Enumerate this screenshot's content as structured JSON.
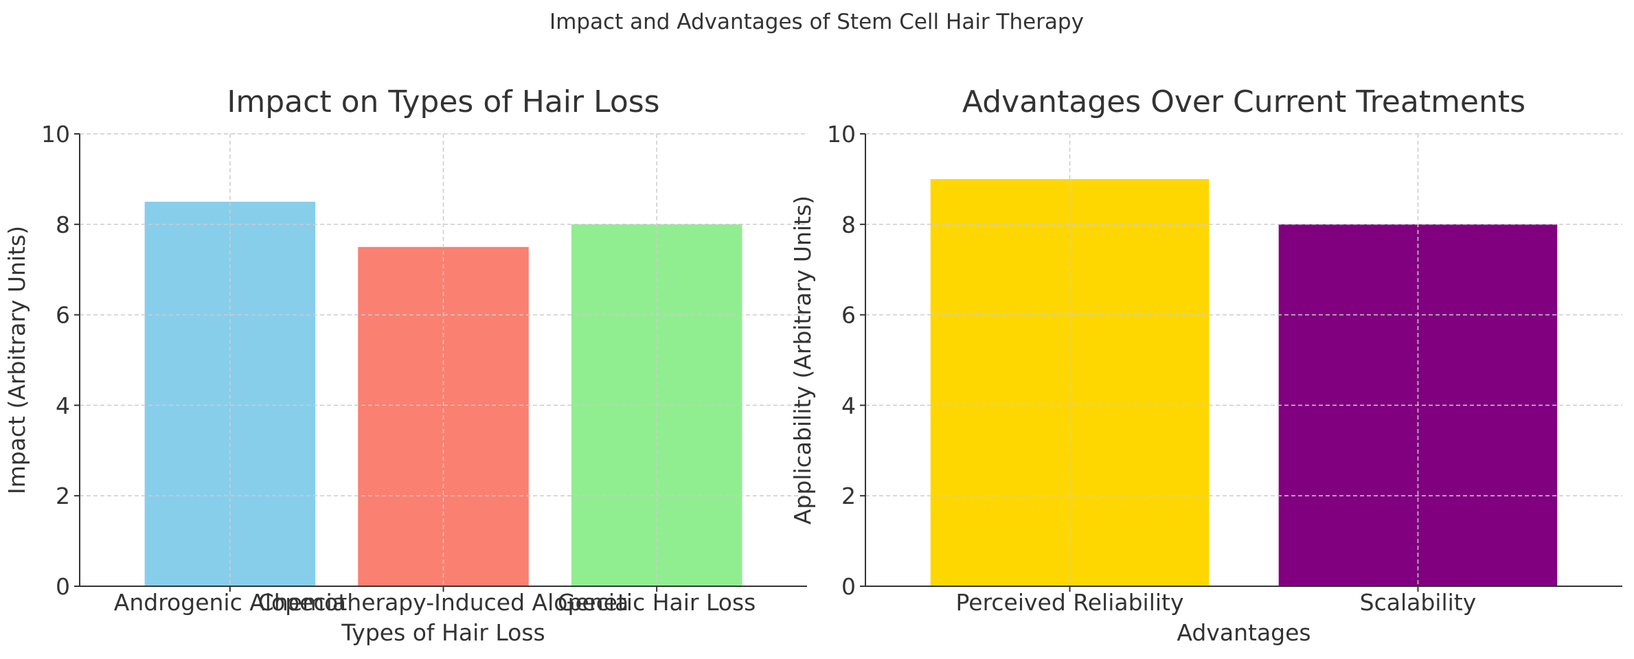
{
  "figure": {
    "suptitle": "Impact and Advantages of Stem Cell Hair Therapy"
  },
  "chart_data": [
    {
      "type": "bar",
      "title": "Impact on Types of Hair Loss",
      "xlabel": "Types of Hair Loss",
      "ylabel": "Impact (Arbitrary Units)",
      "categories": [
        "Androgenic Alopecia",
        "Chemotherapy-Induced Alopecia",
        "Genetic Hair Loss"
      ],
      "values": [
        8.5,
        7.5,
        8
      ],
      "colors": [
        "#87CEEB",
        "#FA8072",
        "#90EE90"
      ],
      "ylim": [
        0,
        10
      ],
      "yticks": [
        0,
        2,
        4,
        6,
        8,
        10
      ],
      "grid": true
    },
    {
      "type": "bar",
      "title": "Advantages Over Current Treatments",
      "xlabel": "Advantages",
      "ylabel": "Applicability (Arbitrary Units)",
      "categories": [
        "Perceived Reliability",
        "Scalability"
      ],
      "values": [
        9,
        8
      ],
      "colors": [
        "#FFD700",
        "#800080"
      ],
      "ylim": [
        0,
        10
      ],
      "yticks": [
        0,
        2,
        4,
        6,
        8,
        10
      ],
      "grid": true
    }
  ]
}
